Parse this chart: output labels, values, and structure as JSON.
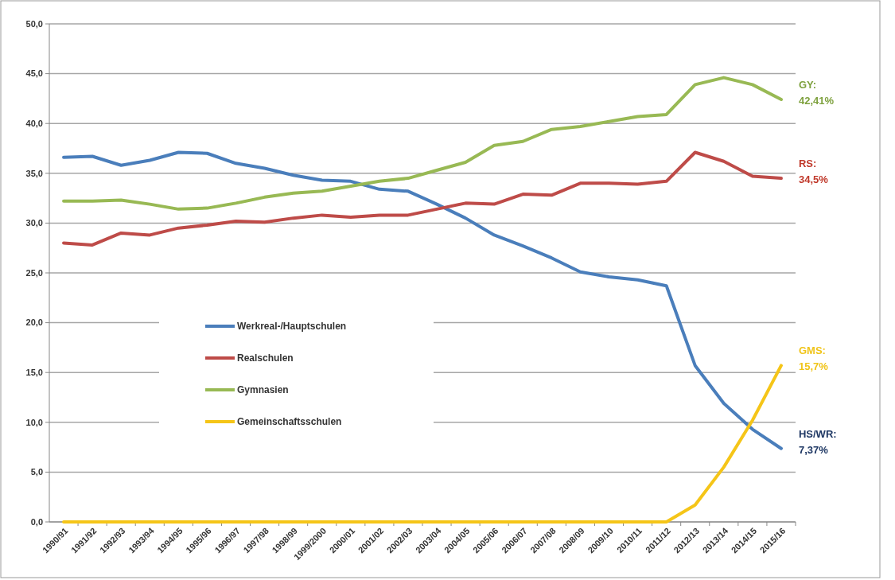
{
  "chart_data": {
    "type": "line",
    "categories": [
      "1990/91",
      "1991/92",
      "1992/93",
      "1993/94",
      "1994/95",
      "1995/96",
      "1996/97",
      "1997/98",
      "1998/99",
      "1999/2000",
      "2000/01",
      "2001/02",
      "2002/03",
      "2003/04",
      "2004/05",
      "2005/06",
      "2006/07",
      "2007/08",
      "2008/09",
      "2009/10",
      "2010/11",
      "2011/12",
      "2012/13",
      "2013/14",
      "2014/15",
      "2015/16"
    ],
    "series": [
      {
        "name": "Werkreal-/Hauptschulen",
        "color": "#4a7ebb",
        "values": [
          36.6,
          36.7,
          35.8,
          36.3,
          37.1,
          37.0,
          36.0,
          35.5,
          34.8,
          34.3,
          34.2,
          33.4,
          33.2,
          31.9,
          30.5,
          28.8,
          27.7,
          26.5,
          25.1,
          24.6,
          24.3,
          23.7,
          15.7,
          11.9,
          9.3,
          7.37
        ]
      },
      {
        "name": "Realschulen",
        "color": "#be4b48",
        "values": [
          28.0,
          27.8,
          29.0,
          28.8,
          29.5,
          29.8,
          30.2,
          30.1,
          30.5,
          30.8,
          30.6,
          30.8,
          30.8,
          31.4,
          32.0,
          31.9,
          32.9,
          32.8,
          34.0,
          34.0,
          33.9,
          34.2,
          37.1,
          36.2,
          34.7,
          34.5
        ]
      },
      {
        "name": "Gymnasien",
        "color": "#98b954",
        "values": [
          32.2,
          32.2,
          32.3,
          31.9,
          31.4,
          31.5,
          32.0,
          32.6,
          33.0,
          33.2,
          33.7,
          34.2,
          34.5,
          35.3,
          36.1,
          37.8,
          38.2,
          39.4,
          39.7,
          40.2,
          40.7,
          40.9,
          43.9,
          44.6,
          43.9,
          42.41
        ]
      },
      {
        "name": "Gemeinschaftsschulen",
        "color": "#f5c518",
        "values": [
          0,
          0,
          0,
          0,
          0,
          0,
          0,
          0,
          0,
          0,
          0,
          0,
          0,
          0,
          0,
          0,
          0,
          0,
          0,
          0,
          0,
          0,
          1.7,
          5.5,
          10.2,
          15.7
        ]
      }
    ],
    "annotations": [
      {
        "text": "HS/WR: 7,37%",
        "x": "2015/16",
        "y": 7.37
      },
      {
        "text": "RS: 34,5%",
        "x": "2015/16",
        "y": 34.5
      },
      {
        "text": "GY: 42,41%",
        "x": "2015/16",
        "y": 42.41
      },
      {
        "text": "GMS: 15,7%",
        "x": "2015/16",
        "y": 15.7
      }
    ],
    "ylim": [
      0,
      50
    ],
    "yticks": [
      {
        "value": 0,
        "label": "0,0"
      },
      {
        "value": 5,
        "label": "5,0"
      },
      {
        "value": 10,
        "label": "10,0"
      },
      {
        "value": 15,
        "label": "15,0"
      },
      {
        "value": 20,
        "label": "20,0"
      },
      {
        "value": 25,
        "label": "25,0"
      },
      {
        "value": 30,
        "label": "30,0"
      },
      {
        "value": 35,
        "label": "35,0"
      },
      {
        "value": 40,
        "label": "40,0"
      },
      {
        "value": 45,
        "label": "45,0"
      },
      {
        "value": 50,
        "label": "50,0"
      }
    ],
    "grid": "y",
    "legend": "center"
  }
}
